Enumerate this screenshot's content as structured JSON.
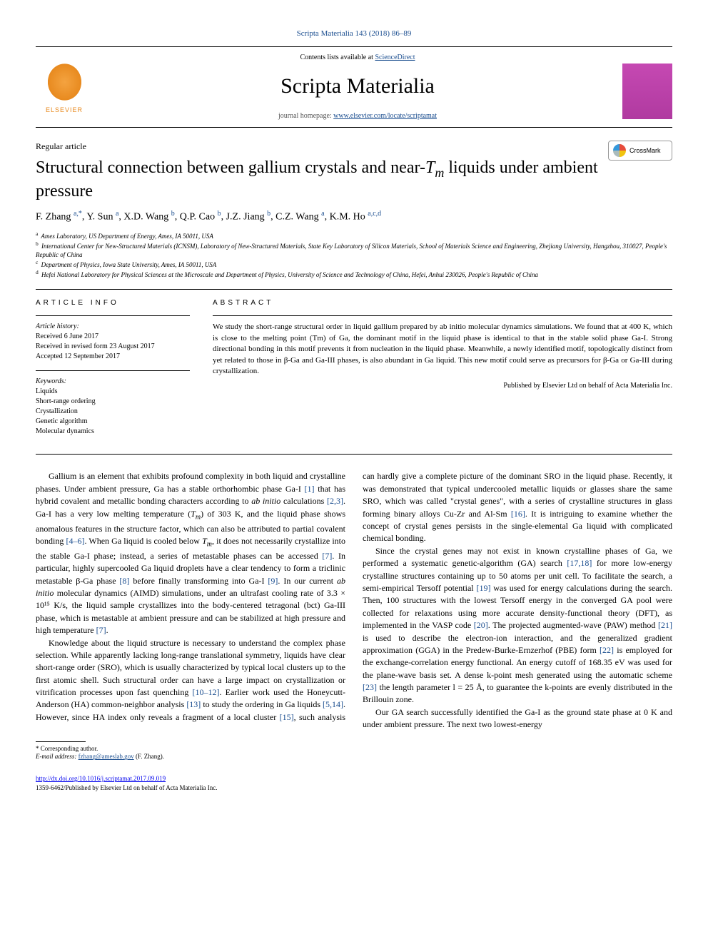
{
  "citation": "Scripta Materialia 143 (2018) 86–89",
  "header": {
    "contents_prefix": "Contents lists available at ",
    "contents_link": "ScienceDirect",
    "journal_name": "Scripta Materialia",
    "homepage_prefix": "journal homepage: ",
    "homepage_url": "www.elsevier.com/locate/scriptamat",
    "elsevier": "ELSEVIER"
  },
  "article": {
    "type": "Regular article",
    "title_a": "Structural connection between gallium crystals and near-",
    "title_sub": "T",
    "title_subm": "m",
    "title_b": " liquids under ambient pressure",
    "crossmark": "CrossMark",
    "authors_html": "F. Zhang <sup>a,*</sup>, Y. Sun <sup>a</sup>, X.D. Wang <sup>b</sup>, Q.P. Cao <sup>b</sup>, J.Z. Jiang <sup>b</sup>, C.Z. Wang <sup>a</sup>, K.M. Ho <sup>a,c,d</sup>",
    "affiliations": [
      {
        "sup": "a",
        "text": "Ames Laboratory, US Department of Energy, Ames, IA 50011, USA"
      },
      {
        "sup": "b",
        "text": "International Center for New-Structured Materials (ICNSM), Laboratory of New-Structured Materials, State Key Laboratory of Silicon Materials, School of Materials Science and Engineering, Zhejiang University, Hangzhou, 310027, People's Republic of China"
      },
      {
        "sup": "c",
        "text": "Department of Physics, Iowa State University, Ames, IA 50011, USA"
      },
      {
        "sup": "d",
        "text": "Hefei National Laboratory for Physical Sciences at the Microscale and Department of Physics, University of Science and Technology of China, Hefei, Anhui 230026, People's Republic of China"
      }
    ]
  },
  "info": {
    "heading": "ARTICLE INFO",
    "history_label": "Article history:",
    "history": [
      "Received 6 June 2017",
      "Received in revised form 23 August 2017",
      "Accepted 12 September 2017"
    ],
    "keywords_label": "Keywords:",
    "keywords": [
      "Liquids",
      "Short-range ordering",
      "Crystallization",
      "Genetic algorithm",
      "Molecular dynamics"
    ]
  },
  "abstract": {
    "heading": "ABSTRACT",
    "text": "We study the short-range structural order in liquid gallium prepared by ab initio molecular dynamics simulations. We found that at 400 K, which is close to the melting point (Tm) of Ga, the dominant motif in the liquid phase is identical to that in the stable solid phase Ga-I. Strong directional bonding in this motif prevents it from nucleation in the liquid phase. Meanwhile, a newly identified motif, topologically distinct from yet related to those in β-Ga and Ga-III phases, is also abundant in Ga liquid. This new motif could serve as precursors for β-Ga or Ga-III during crystallization.",
    "copyright": "Published by Elsevier Ltd on behalf of Acta Materialia Inc."
  },
  "body": {
    "p1": "Gallium is an element that exhibits profound complexity in both liquid and crystalline phases. Under ambient pressure, Ga has a stable orthorhombic phase Ga-I [1] that has hybrid covalent and metallic bonding characters according to ab initio calculations [2,3]. Ga-I has a very low melting temperature (Tm) of 303 K, and the liquid phase shows anomalous features in the structure factor, which can also be attributed to partial covalent bonding [4–6]. When Ga liquid is cooled below Tm, it does not necessarily crystallize into the stable Ga-I phase; instead, a series of metastable phases can be accessed [7]. In particular, highly supercooled Ga liquid droplets have a clear tendency to form a triclinic metastable β-Ga phase [8] before finally transforming into Ga-I [9]. In our current ab initio molecular dynamics (AIMD) simulations, under an ultrafast cooling rate of 3.3 × 10¹⁵ K/s, the liquid sample crystallizes into the body-centered tetragonal (bct) Ga-III phase, which is metastable at ambient pressure and can be stabilized at high pressure and high temperature [7].",
    "p2": "Knowledge about the liquid structure is necessary to understand the complex phase selection. While apparently lacking long-range translational symmetry, liquids have clear short-range order (SRO), which is usually characterized by typical local clusters up to the first atomic shell. Such structural order can have a large impact on crystallization or vitrification processes upon fast quenching [10–12]. Earlier work used the Honeycutt-Anderson (HA) common-neighbor analysis [13] to study the ordering in Ga liquids [5,14]. However, since HA index only reveals a fragment of a local cluster [15], such analysis can hardly give a complete picture of the dominant SRO in the liquid phase. Recently, it was demonstrated that typical undercooled metallic liquids or glasses share the same SRO, which was called \"crystal genes\", with a series of crystalline structures in glass forming binary alloys Cu-Zr and Al-Sm [16]. It is intriguing to examine whether the concept of crystal genes persists in the single-elemental Ga liquid with complicated chemical bonding.",
    "p3": "Since the crystal genes may not exist in known crystalline phases of Ga, we performed a systematic genetic-algorithm (GA) search [17,18] for more low-energy crystalline structures containing up to 50 atoms per unit cell. To facilitate the search, a semi-empirical Tersoff potential [19] was used for energy calculations during the search. Then, 100 structures with the lowest Tersoff energy in the converged GA pool were collected for relaxations using more accurate density-functional theory (DFT), as implemented in the VASP code [20]. The projected augmented-wave (PAW) method [21] is used to describe the electron-ion interaction, and the generalized gradient approximation (GGA) in the Predew-Burke-Ernzerhof (PBE) form [22] is employed for the exchange-correlation energy functional. An energy cutoff of 168.35 eV was used for the plane-wave basis set. A dense k-point mesh generated using the automatic scheme [23] the length parameter l = 25 Å, to guarantee the k-points are evenly distributed in the Brillouin zone.",
    "p4": "Our GA search successfully identified the Ga-I as the ground state phase at 0 K and under ambient pressure. The next two lowest-energy"
  },
  "footnote": {
    "corr": "* Corresponding author.",
    "email_label": "E-mail address:",
    "email": "fzhang@ameslab.gov",
    "email_who": "(F. Zhang)."
  },
  "bottom": {
    "doi": "http://dx.doi.org/10.1016/j.scriptamat.2017.09.019",
    "issn_copy": "1359-6462/Published by Elsevier Ltd on behalf of Acta Materialia Inc."
  },
  "refs": {
    "r1": "[1]",
    "r23": "[2,3]",
    "r46": "[4–6]",
    "r7": "[7]",
    "r8": "[8]",
    "r9": "[9]",
    "r1012": "[10–12]",
    "r13": "[13]",
    "r514": "[5,14]",
    "r15": "[15]",
    "r16": "[16]",
    "r1718": "[17,18]",
    "r19": "[19]",
    "r20": "[20]",
    "r21": "[21]",
    "r22": "[22]",
    "r23b": "[23]"
  }
}
